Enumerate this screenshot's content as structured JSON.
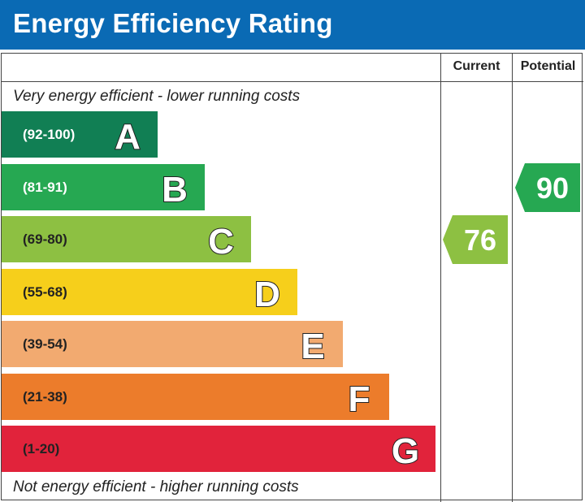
{
  "title": "Energy Efficiency Rating",
  "columns": {
    "current": "Current",
    "potential": "Potential"
  },
  "captions": {
    "top": "Very energy efficient - lower running costs",
    "bottom": "Not energy efficient - higher running costs"
  },
  "chart_data": {
    "type": "bar",
    "title": "Energy Efficiency Rating",
    "bands": [
      {
        "letter": "A",
        "range": "(92-100)",
        "color": "#117f54",
        "text_color": "#ffffff"
      },
      {
        "letter": "B",
        "range": "(81-91)",
        "color": "#26a852",
        "text_color": "#ffffff"
      },
      {
        "letter": "C",
        "range": "(69-80)",
        "color": "#8dc042",
        "text_color": "#222222"
      },
      {
        "letter": "D",
        "range": "(55-68)",
        "color": "#f6cf1b",
        "text_color": "#222222"
      },
      {
        "letter": "E",
        "range": "(39-54)",
        "color": "#f2aa70",
        "text_color": "#222222"
      },
      {
        "letter": "F",
        "range": "(21-38)",
        "color": "#ec7c2b",
        "text_color": "#222222"
      },
      {
        "letter": "G",
        "range": "(1-20)",
        "color": "#e1233b",
        "text_color": "#222222"
      }
    ],
    "current": {
      "value": 76,
      "band": "C",
      "color": "#8dc042"
    },
    "potential": {
      "value": 90,
      "band": "B",
      "color": "#26a852"
    }
  }
}
